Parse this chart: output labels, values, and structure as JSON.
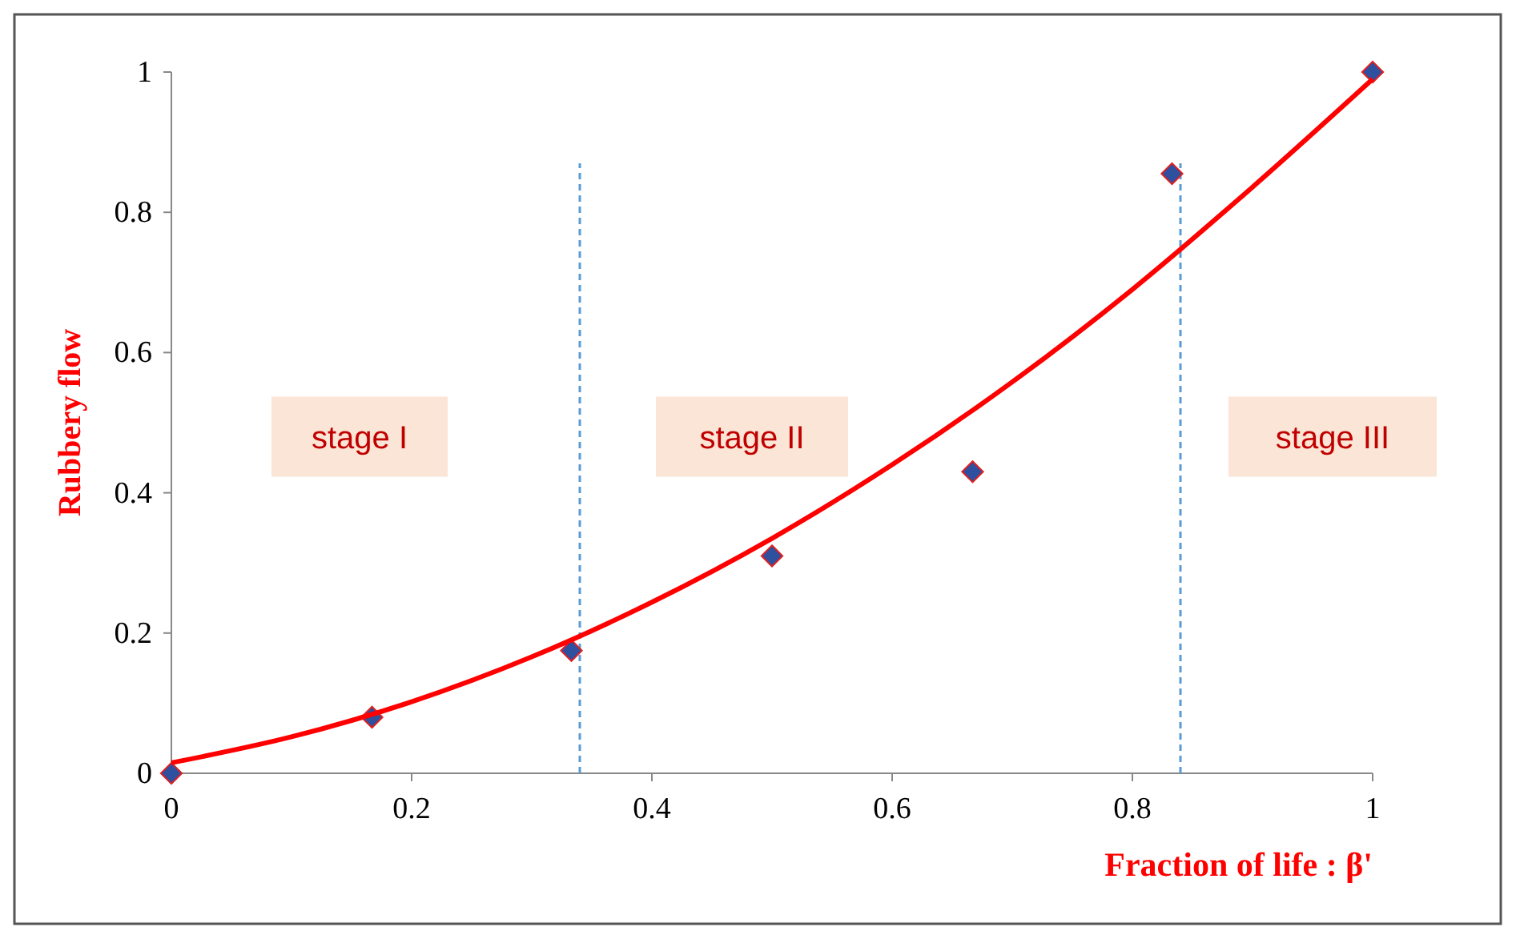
{
  "chart_data": {
    "type": "scatter",
    "xlabel": "Fraction of life :  β'",
    "ylabel": "Rubbery flow",
    "xlim": [
      0,
      1
    ],
    "ylim": [
      0,
      1
    ],
    "xticks": [
      0,
      0.2,
      0.4,
      0.6,
      0.8,
      1
    ],
    "yticks": [
      0,
      0.2,
      0.4,
      0.6,
      0.8,
      1
    ],
    "grid": false,
    "series": [
      {
        "color": "#2f4f9f",
        "marker": "diamond",
        "x": [
          0,
          0.167,
          0.333,
          0.5,
          0.667,
          0.833,
          1
        ],
        "values": [
          0,
          0.08,
          0.175,
          0.31,
          0.43,
          0.855,
          1
        ]
      },
      {
        "type": "line",
        "color": "#ff0000",
        "marker": "none",
        "line_style": "solid",
        "x": [
          0,
          0.1,
          0.2,
          0.3,
          0.4,
          0.5,
          0.6,
          0.7,
          0.8,
          0.9,
          1
        ],
        "values": [
          0.015,
          0.052,
          0.102,
          0.166,
          0.244,
          0.335,
          0.44,
          0.558,
          0.69,
          0.836,
          0.99
        ]
      }
    ],
    "ref_lines": [
      {
        "axis": "x",
        "value": 0.34,
        "color": "#5b9bd5",
        "line_style": "dashed"
      },
      {
        "axis": "x",
        "value": 0.84,
        "color": "#5b9bd5",
        "line_style": "dashed"
      }
    ],
    "annotations": [
      "stage I",
      "stage II",
      "stage III"
    ]
  }
}
